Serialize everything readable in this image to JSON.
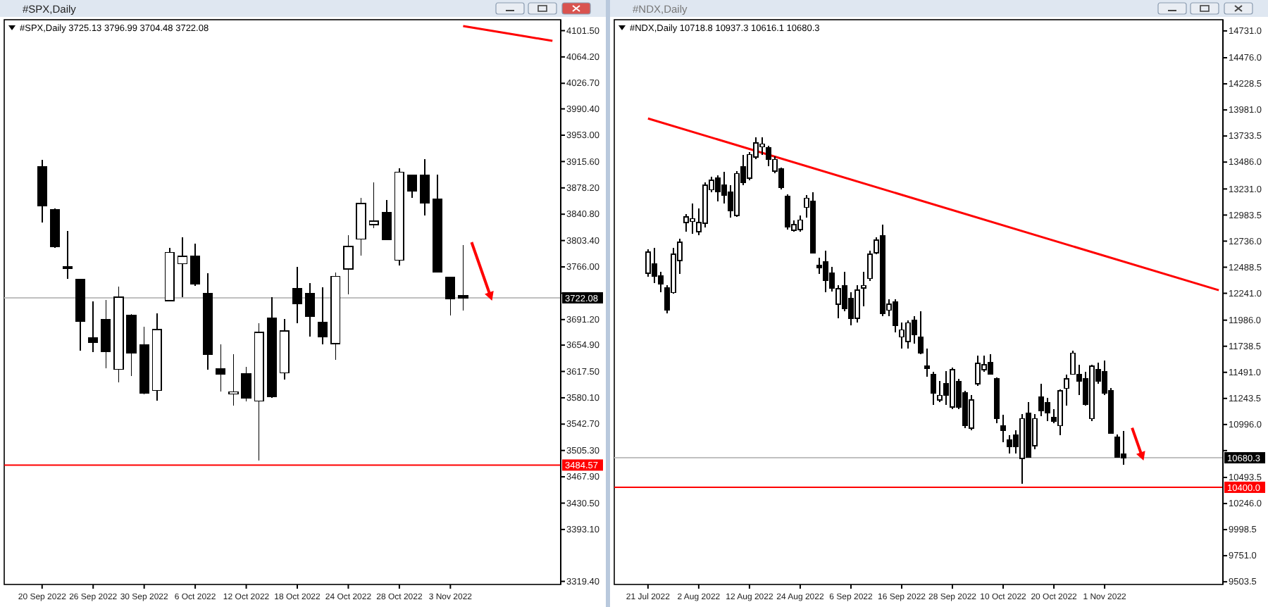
{
  "chart_data": [
    {
      "type": "candlestick",
      "title": "#SPX,Daily",
      "subtitle": "#SPX,Daily  3725.13 3796.99 3704.48 3722.08",
      "categories": [
        "20 Sep 2022",
        null,
        null,
        null,
        "26 Sep 2022",
        null,
        null,
        null,
        "30 Sep 2022",
        null,
        null,
        null,
        "6 Oct 2022",
        null,
        null,
        null,
        "12 Oct 2022",
        null,
        null,
        null,
        "18 Oct 2022",
        null,
        null,
        null,
        "24 Oct 2022",
        null,
        null,
        null,
        "28 Oct 2022",
        null,
        null,
        null,
        "3 Nov 2022",
        null,
        null,
        null,
        null,
        null,
        null,
        null,
        null
      ],
      "ohlc": [
        [
          3908.5,
          3918.4,
          3828.9,
          3852.8
        ],
        [
          3847.4,
          3849,
          3793,
          3795
        ],
        [
          3766,
          3817.5,
          3748.7,
          3764
        ],
        [
          3747.9,
          3748,
          3647.2,
          3689
        ],
        [
          3665.7,
          3716.8,
          3645.2,
          3659.1
        ],
        [
          3691.6,
          3718.8,
          3622.5,
          3645.8
        ],
        [
          3620.5,
          3737.9,
          3602,
          3722.8
        ],
        [
          3697.5,
          3699,
          3610.6,
          3643.8
        ],
        [
          3655.1,
          3681.5,
          3585,
          3586.7
        ],
        [
          3590.7,
          3700.1,
          3576.1,
          3677
        ],
        [
          3718,
          3793.1,
          3717,
          3786.5
        ],
        [
          3770.6,
          3807.6,
          3723.4,
          3781.1
        ],
        [
          3781.1,
          3799,
          3738.7,
          3741.9
        ],
        [
          3728,
          3756.6,
          3620.5,
          3641.8
        ],
        [
          3621.3,
          3655.7,
          3588.7,
          3614
        ],
        [
          3585.5,
          3641.8,
          3568.8,
          3588.7
        ],
        [
          3614,
          3623.9,
          3575.5,
          3579.5
        ],
        [
          3575.5,
          3685.6,
          3491.2,
          3673
        ],
        [
          3693.5,
          3723.4,
          3580,
          3581.5
        ],
        [
          3615.4,
          3691.6,
          3606,
          3675
        ],
        [
          3735.3,
          3765.8,
          3686.2,
          3713.5
        ],
        [
          3728,
          3742.7,
          3667,
          3695.5
        ],
        [
          3687,
          3736.7,
          3655.7,
          3667
        ],
        [
          3657,
          3757.8,
          3633.9,
          3752.6
        ],
        [
          3763.2,
          3811,
          3726.8,
          3795
        ],
        [
          3805.6,
          3864,
          3781.7,
          3856
        ],
        [
          3826.3,
          3886,
          3821,
          3830.9
        ],
        [
          3842.8,
          3860.7,
          3804,
          3805
        ],
        [
          3775.7,
          3905.9,
          3767.8,
          3900.5
        ],
        [
          3895.9,
          3897,
          3864.1,
          3874
        ],
        [
          3895.9,
          3919,
          3839.4,
          3857.3
        ],
        [
          3862.7,
          3897.1,
          3758,
          3759.2
        ],
        [
          3751.3,
          3752,
          3697,
          3720.8
        ],
        [
          3725.13,
          3796.99,
          3704.48,
          3722.08
        ],
        null,
        null,
        null,
        null,
        null,
        null,
        null
      ],
      "series": [
        {
          "type": "line",
          "color": "#ff0000",
          "values": [
            null,
            null,
            null,
            null,
            null,
            null,
            null,
            null,
            null,
            null,
            null,
            null,
            null,
            null,
            null,
            null,
            null,
            null,
            null,
            null,
            null,
            null,
            null,
            null,
            null,
            null,
            null,
            null,
            null,
            null,
            null,
            null,
            null,
            4108,
            4105,
            4102,
            4099,
            4096,
            4093,
            4090,
            4087
          ]
        }
      ],
      "ylim": [
        3315,
        4117
      ],
      "yticks": [
        {
          "value": 4101.5,
          "label": "4101.50"
        },
        {
          "value": 4064.2,
          "label": "4064.20"
        },
        {
          "value": 4026.7,
          "label": "4026.70"
        },
        {
          "value": 3990.4,
          "label": "3990.40"
        },
        {
          "value": 3953,
          "label": "3953.00"
        },
        {
          "value": 3915.6,
          "label": "3915.60"
        },
        {
          "value": 3878.2,
          "label": "3878.20"
        },
        {
          "value": 3840.8,
          "label": "3840.80"
        },
        {
          "value": 3803.4,
          "label": "3803.40"
        },
        {
          "value": 3766,
          "label": "3766.00"
        },
        {
          "value": 3728.6,
          "label": null
        },
        {
          "value": 3691.2,
          "label": "3691.20"
        },
        {
          "value": 3654.9,
          "label": "3654.90"
        },
        {
          "value": 3617.5,
          "label": "3617.50"
        },
        {
          "value": 3580.1,
          "label": "3580.10"
        },
        {
          "value": 3542.7,
          "label": "3542.70"
        },
        {
          "value": 3505.3,
          "label": "3505.30"
        },
        {
          "value": 3467.9,
          "label": "3467.90"
        },
        {
          "value": 3430.5,
          "label": "3430.50"
        },
        {
          "value": 3393.1,
          "label": "3393.10"
        },
        {
          "value": 3319.4,
          "label": "3319.40"
        }
      ],
      "ref_lines": [
        {
          "axis": "y",
          "value": 3722.08,
          "label": "3722.08",
          "color": "#c0c0c0"
        },
        {
          "axis": "y",
          "value": 3484.57,
          "label": "3484.57",
          "color": "#ff0000"
        }
      ]
    },
    {
      "type": "candlestick",
      "title": "#NDX,Daily",
      "subtitle": "#NDX,Daily  10718.8 10937.3 10616.1 10680.3",
      "categories": [
        "21 Jul 2022",
        null,
        null,
        null,
        null,
        null,
        null,
        null,
        "2 Aug 2022",
        null,
        null,
        null,
        null,
        null,
        null,
        null,
        "12 Aug 2022",
        null,
        null,
        null,
        null,
        null,
        null,
        null,
        "24 Aug 2022",
        null,
        null,
        null,
        null,
        null,
        null,
        null,
        "6 Sep 2022",
        null,
        null,
        null,
        null,
        null,
        null,
        null,
        "16 Sep 2022",
        null,
        null,
        null,
        null,
        null,
        null,
        null,
        "28 Sep 2022",
        null,
        null,
        null,
        null,
        null,
        null,
        null,
        "10 Oct 2022",
        null,
        null,
        null,
        null,
        null,
        null,
        null,
        "20 Oct 2022",
        null,
        null,
        null,
        null,
        null,
        null,
        null,
        "1 Nov 2022",
        null,
        null,
        null,
        null,
        null,
        null,
        null,
        null,
        null,
        null,
        null,
        null,
        null,
        null,
        null,
        null,
        null,
        null
      ],
      "ohlc": [
        [
          12430,
          12660,
          12400,
          12630
        ],
        [
          12523,
          12670,
          12337,
          12404
        ],
        [
          12404,
          12447,
          12248,
          12328
        ],
        [
          12293,
          12315,
          12048,
          12080
        ],
        [
          12248,
          12670,
          12240,
          12612
        ],
        [
          12550,
          12759,
          12426,
          12727
        ],
        [
          12913,
          12993,
          12825,
          12966
        ],
        [
          12922,
          13091,
          12803,
          12949
        ],
        [
          12825,
          13046,
          12789,
          12913
        ],
        [
          12905,
          13291,
          12869,
          13268
        ],
        [
          13224,
          13348,
          13202,
          13312
        ],
        [
          13335,
          13357,
          13112,
          13202
        ],
        [
          13268,
          13392,
          13091,
          13171
        ],
        [
          13202,
          13268,
          12958,
          13025
        ],
        [
          12979,
          13401,
          12966,
          13378
        ],
        [
          13445,
          13557,
          13268,
          13291
        ],
        [
          13335,
          13578,
          13312,
          13557
        ],
        [
          13534,
          13720,
          13511,
          13667
        ],
        [
          13631,
          13720,
          13557,
          13658
        ],
        [
          13623,
          13644,
          13445,
          13511
        ],
        [
          13401,
          13543,
          13378,
          13511
        ],
        [
          13424,
          13437,
          13224,
          13245
        ],
        [
          13158,
          13180,
          12847,
          12869
        ],
        [
          12838,
          12935,
          12825,
          12892
        ],
        [
          12847,
          12979,
          12825,
          12935
        ],
        [
          13055,
          13171,
          12958,
          13144
        ],
        [
          13112,
          13202,
          12620,
          12626
        ],
        [
          12506,
          12580,
          12426,
          12483
        ],
        [
          12537,
          12647,
          12248,
          12360
        ],
        [
          12434,
          12493,
          12257,
          12293
        ],
        [
          12137,
          12315,
          12004,
          12284
        ],
        [
          12315,
          12447,
          12071,
          12093
        ],
        [
          12195,
          12248,
          11938,
          12004
        ],
        [
          12004,
          12315,
          11961,
          12270
        ],
        [
          12293,
          12447,
          12115,
          12315
        ],
        [
          12381,
          12647,
          12360,
          12612
        ],
        [
          12626,
          12772,
          12612,
          12745
        ],
        [
          12789,
          12892,
          12027,
          12048
        ],
        [
          12080,
          12181,
          12027,
          12137
        ],
        [
          12160,
          12181,
          11871,
          11938
        ],
        [
          11828,
          11961,
          11716,
          11894
        ],
        [
          11782,
          11982,
          11716,
          11961
        ],
        [
          11982,
          12027,
          11761,
          11849
        ],
        [
          11828,
          12071,
          11663,
          11672
        ],
        [
          11548,
          11716,
          11450,
          11530
        ],
        [
          11472,
          11495,
          11184,
          11296
        ],
        [
          11229,
          11406,
          11206,
          11273
        ],
        [
          11383,
          11503,
          11184,
          11273
        ],
        [
          11163,
          11539,
          11140,
          11516
        ],
        [
          11406,
          11429,
          11140,
          11163
        ],
        [
          11296,
          11318,
          10963,
          10984
        ],
        [
          10963,
          11273,
          10940,
          11229
        ],
        [
          11383,
          11649,
          11362,
          11575
        ],
        [
          11516,
          11649,
          11495,
          11562
        ],
        [
          11583,
          11663,
          11472,
          11472
        ],
        [
          11429,
          11440,
          11007,
          11051
        ],
        [
          10984,
          11087,
          10830,
          10940
        ],
        [
          10851,
          10897,
          10718,
          10785
        ],
        [
          10897,
          10940,
          10718,
          10785
        ],
        [
          10674,
          11096,
          10431,
          11051
        ],
        [
          11104,
          11206,
          10680,
          10688
        ],
        [
          10794,
          11096,
          10764,
          11051
        ],
        [
          11260,
          11383,
          11074,
          11127
        ],
        [
          11206,
          11250,
          11030,
          11104
        ],
        [
          11060,
          11140,
          11007,
          11030
        ],
        [
          10984,
          11326,
          10897,
          11317
        ],
        [
          11340,
          11472,
          11176,
          11429
        ],
        [
          11472,
          11694,
          11472,
          11672
        ],
        [
          11472,
          11562,
          11273,
          11406
        ],
        [
          11429,
          11495,
          11176,
          11184
        ],
        [
          11051,
          11562,
          11030,
          11548
        ],
        [
          11516,
          11583,
          11383,
          11406
        ],
        [
          11495,
          11606,
          11273,
          11296
        ],
        [
          11317,
          11340,
          10905,
          10910
        ],
        [
          10874,
          10900,
          10680,
          10688
        ],
        [
          10718.8,
          10937.3,
          10616.1,
          10680.3
        ],
        null,
        null,
        null,
        null,
        null,
        null,
        null,
        null,
        null,
        null,
        null,
        null,
        null,
        null,
        null
      ],
      "series": [
        {
          "type": "line",
          "color": "#ff0000",
          "values": [
            13900,
            null,
            null,
            null,
            null,
            null,
            null,
            null,
            null,
            null,
            null,
            null,
            null,
            null,
            null,
            null,
            null,
            null,
            null,
            null,
            null,
            null,
            null,
            null,
            null,
            null,
            null,
            null,
            null,
            null,
            null,
            null,
            null,
            null,
            null,
            null,
            null,
            null,
            null,
            null,
            null,
            null,
            null,
            null,
            null,
            null,
            null,
            null,
            null,
            null,
            null,
            null,
            null,
            null,
            null,
            null,
            null,
            null,
            null,
            null,
            null,
            null,
            null,
            null,
            null,
            null,
            null,
            null,
            null,
            null,
            null,
            null,
            null,
            null,
            null,
            null,
            null,
            null,
            null,
            null,
            null,
            null,
            null,
            null,
            null,
            null,
            null,
            null,
            null,
            null,
            12270
          ]
        }
      ],
      "ylim": [
        9478,
        14837
      ],
      "yticks": [
        {
          "value": 14731,
          "label": "14731.0"
        },
        {
          "value": 14476,
          "label": "14476.0"
        },
        {
          "value": 14228.5,
          "label": "14228.5"
        },
        {
          "value": 13981,
          "label": "13981.0"
        },
        {
          "value": 13733.5,
          "label": "13733.5"
        },
        {
          "value": 13486,
          "label": "13486.0"
        },
        {
          "value": 13231,
          "label": "13231.0"
        },
        {
          "value": 12983.5,
          "label": "12983.5"
        },
        {
          "value": 12736,
          "label": "12736.0"
        },
        {
          "value": 12488.5,
          "label": "12488.5"
        },
        {
          "value": 12241,
          "label": "12241.0"
        },
        {
          "value": 11986,
          "label": "11986.0"
        },
        {
          "value": 11738.5,
          "label": "11738.5"
        },
        {
          "value": 11491,
          "label": "11491.0"
        },
        {
          "value": 11243.5,
          "label": "11243.5"
        },
        {
          "value": 10996,
          "label": "10996.0"
        },
        {
          "value": 10748.5,
          "label": null
        },
        {
          "value": 10493.5,
          "label": "10493.5"
        },
        {
          "value": 10246,
          "label": "10246.0"
        },
        {
          "value": 9998.5,
          "label": "9998.5"
        },
        {
          "value": 9751,
          "label": "9751.0"
        },
        {
          "value": 9503.5,
          "label": "9503.5"
        }
      ],
      "ref_lines": [
        {
          "axis": "y",
          "value": 10680.3,
          "label": "10680.3",
          "color": "#c0c0c0"
        },
        {
          "axis": "y",
          "value": 10400,
          "label": "10400.0",
          "color": "#ff0000"
        }
      ]
    }
  ]
}
